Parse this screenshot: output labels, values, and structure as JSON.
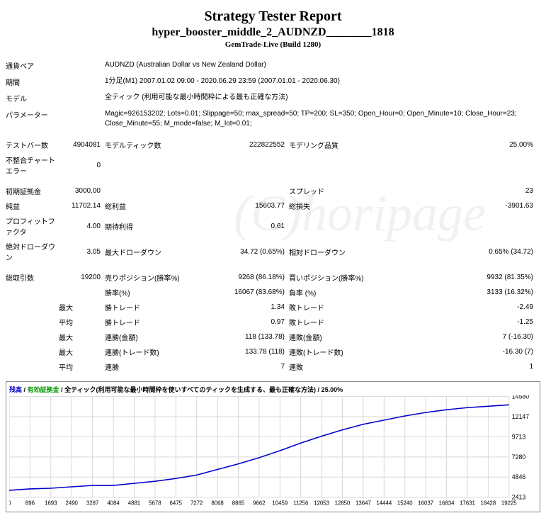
{
  "header": {
    "title": "Strategy Tester Report",
    "subtitle": "hyper_booster_middle_2_AUDNZD________1818",
    "build": "GemTrade-Live (Build 1280)"
  },
  "info": {
    "pair_label": "通貨ペア",
    "pair_value": "AUDNZD (Australian Dollar vs New Zealand Dollar)",
    "period_label": "期間",
    "period_value": "1分足(M1) 2007.01.02 09:00 - 2020.06.29 23:59 (2007.01.01 - 2020.06.30)",
    "model_label": "モデル",
    "model_value": "全ティック (利用可能な最小時間枠による最も正確な方法)",
    "params_label": "パラメーター",
    "params_value": "Magic=926153202; Lots=0.01; Slippage=50; max_spread=50; TP=200; SL=350; Open_Hour=0; Open_Minute=10; Close_Hour=23; Close_Minute=55; M_mode=false; M_lot=0.01;"
  },
  "stats": {
    "bars_label": "テストバー数",
    "bars_val": "4904081",
    "ticks_label": "モデルティック数",
    "ticks_val": "222822552",
    "quality_label": "モデリング品質",
    "quality_val": "25.00%",
    "mismatch_label": "不整合チャートエラー",
    "mismatch_val": "0",
    "deposit_label": "初期証拠金",
    "deposit_val": "3000.00",
    "spread_label": "スプレッド",
    "spread_val": "23",
    "netprofit_label": "純益",
    "netprofit_val": "11702.14",
    "gross_label": "総利益",
    "gross_val": "15603.77",
    "grossloss_label": "総損失",
    "grossloss_val": "-3901.63",
    "pf_label": "プロフィットファクタ",
    "pf_val": "4.00",
    "ep_label": "期待利得",
    "ep_val": "0.61",
    "absdd_label": "絶対ドローダウン",
    "absdd_val": "3.05",
    "maxdd_label": "最大ドローダウン",
    "maxdd_val": "34.72 (0.65%)",
    "reldd_label": "相対ドローダウン",
    "reldd_val": "0.65% (34.72)",
    "total_label": "総取引数",
    "total_val": "19200",
    "short_label": "売りポジション(勝率%)",
    "short_val": "9268 (86.18%)",
    "long_label": "買いポジション(勝率%)",
    "long_val": "9932 (81.35%)",
    "winrate_label": "勝率(%)",
    "winrate_val": "16067 (83.68%)",
    "losrate_label": "負率 (%)",
    "losrate_val": "3133 (16.32%)",
    "max_lbl": "最大",
    "avg_lbl": "平均",
    "wintrade_label": "勝トレード",
    "wintrade_max": "1.34",
    "wintrade_avg": "0.97",
    "lostrade_label": "敗トレード",
    "lostrade_max": "-2.49",
    "lostrade_avg": "-1.25",
    "conswin_amt_label": "連勝(金額)",
    "conswin_amt_val": "118 (133.78)",
    "conslos_amt_label": "連敗(金額)",
    "conslos_amt_val": "7 (-16.30)",
    "conswin_cnt_label": "連勝(トレード数)",
    "conswin_cnt_val": "133.78 (118)",
    "conslos_cnt_label": "連敗(トレード数)",
    "conslos_cnt_val": "-16.30 (7)",
    "conswin_avg_label": "連勝",
    "conswin_avg_val": "7",
    "conslos_avg_label": "連敗",
    "conslos_avg_val": "1"
  },
  "chart": {
    "legend_balance": "残高",
    "legend_equity": "有効証拠金",
    "legend_method": "全ティック(利用可能な最小時間枠を使いすべてのティックを生成する、最も正確な方法)",
    "legend_pct": "25.00%",
    "y_ticks": [
      "14580",
      "12147",
      "9713",
      "7280",
      "4846",
      "2413"
    ],
    "x_ticks": [
      "0",
      "896",
      "1693",
      "2490",
      "3287",
      "4084",
      "4881",
      "5678",
      "6475",
      "7272",
      "8068",
      "8865",
      "9662",
      "10459",
      "11256",
      "12053",
      "12850",
      "13647",
      "14444",
      "15240",
      "16037",
      "16834",
      "17631",
      "18428",
      "19225"
    ],
    "line_color": "#0000cc",
    "grid_color": "#d8d8d8",
    "points": [
      [
        0,
        135
      ],
      [
        30,
        133
      ],
      [
        60,
        132
      ],
      [
        90,
        130
      ],
      [
        120,
        128
      ],
      [
        150,
        128
      ],
      [
        180,
        125
      ],
      [
        210,
        122
      ],
      [
        240,
        118
      ],
      [
        270,
        113
      ],
      [
        300,
        105
      ],
      [
        330,
        97
      ],
      [
        360,
        88
      ],
      [
        390,
        78
      ],
      [
        420,
        67
      ],
      [
        450,
        57
      ],
      [
        480,
        48
      ],
      [
        510,
        40
      ],
      [
        540,
        34
      ],
      [
        570,
        28
      ],
      [
        600,
        23
      ],
      [
        630,
        19
      ],
      [
        660,
        16
      ],
      [
        690,
        14
      ],
      [
        720,
        12
      ]
    ]
  },
  "watermark": "(C)horipage"
}
